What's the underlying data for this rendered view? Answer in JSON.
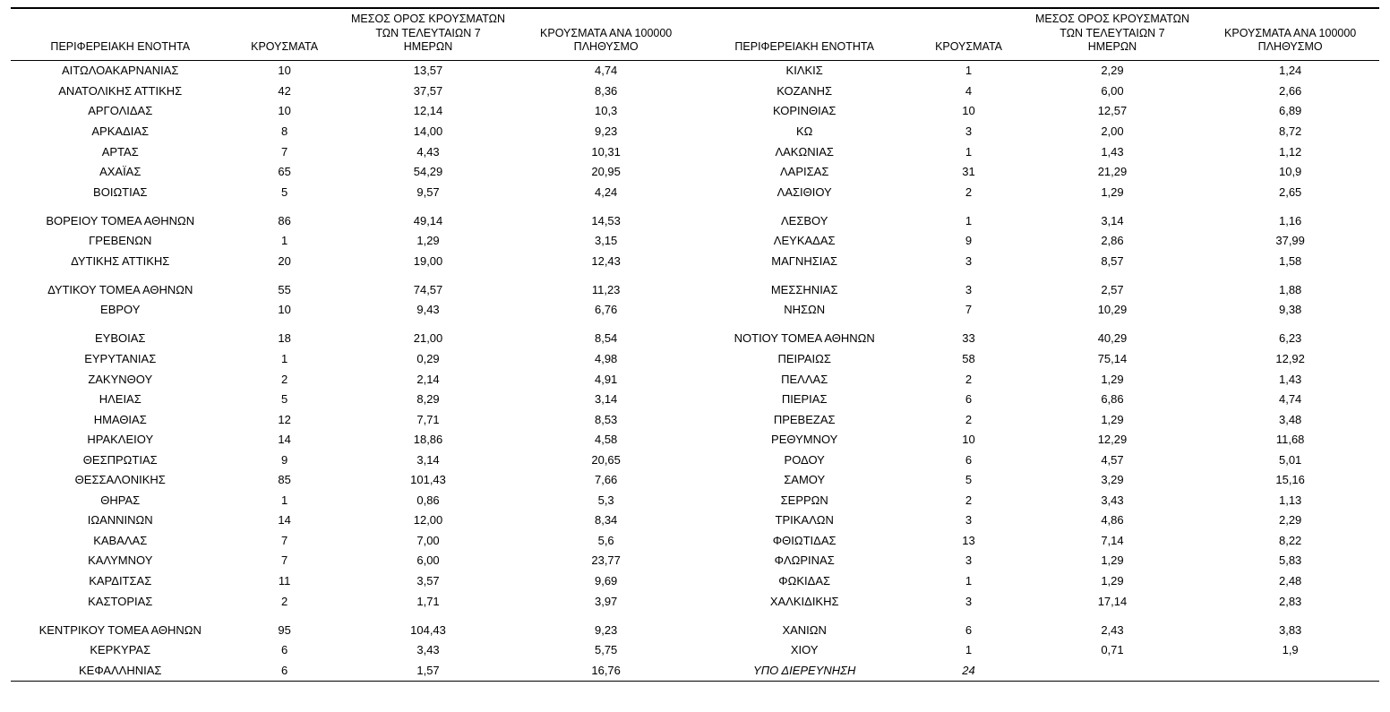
{
  "type": "table",
  "layout": "two-column-repeat",
  "background_color": "#ffffff",
  "text_color": "#000000",
  "border_color": "#000000",
  "font_family": "Arial",
  "header_fontsize": 12.5,
  "body_fontsize": 13,
  "columns": [
    {
      "key": "region",
      "label": "ΠΕΡΙΦΕΡΕΙΑΚΗ ΕΝΟΤΗΤΑ",
      "align": "center",
      "width_pct": 16
    },
    {
      "key": "cases",
      "label": "ΚΡΟΥΣΜΑΤΑ",
      "align": "center",
      "width_pct": 8
    },
    {
      "key": "avg7",
      "label": "ΜΕΣΟΣ ΟΡΟΣ ΚΡΟΥΣΜΑΤΩΝ ΤΩΝ ΤΕΛΕΥΤΑΙΩΝ 7 ΗΜΕΡΩΝ",
      "align": "center",
      "width_pct": 13
    },
    {
      "key": "per100k",
      "label": "ΚΡΟΥΣΜΑΤΑ ΑΝΑ 100000 ΠΛΗΘΥΣΜΟ",
      "align": "center",
      "width_pct": 13
    }
  ],
  "header_lines": {
    "region": "ΠΕΡΙΦΕΡΕΙΑΚΗ ΕΝΟΤΗΤΑ",
    "cases": "ΚΡΟΥΣΜΑΤΑ",
    "avg7_l1": "ΜΕΣΟΣ ΟΡΟΣ ΚΡΟΥΣΜΑΤΩΝ",
    "avg7_l2": "ΤΩΝ ΤΕΛΕΥΤΑΙΩΝ 7",
    "avg7_l3": "ΗΜΕΡΩΝ",
    "per_l1": "ΚΡΟΥΣΜΑΤΑ ΑΝΑ 100000",
    "per_l2": "ΠΛΗΘΥΣΜΟ"
  },
  "rows": [
    {
      "left": {
        "region": "ΑΙΤΩΛΟΑΚΑΡΝΑΝΙΑΣ",
        "cases": "10",
        "avg7": "13,57",
        "per100k": "4,74"
      },
      "right": {
        "region": "ΚΙΛΚΙΣ",
        "cases": "1",
        "avg7": "2,29",
        "per100k": "1,24"
      }
    },
    {
      "left": {
        "region": "ΑΝΑΤΟΛΙΚΗΣ ΑΤΤΙΚΗΣ",
        "cases": "42",
        "avg7": "37,57",
        "per100k": "8,36"
      },
      "right": {
        "region": "ΚΟΖΑΝΗΣ",
        "cases": "4",
        "avg7": "6,00",
        "per100k": "2,66"
      }
    },
    {
      "left": {
        "region": "ΑΡΓΟΛΙΔΑΣ",
        "cases": "10",
        "avg7": "12,14",
        "per100k": "10,3"
      },
      "right": {
        "region": "ΚΟΡΙΝΘΙΑΣ",
        "cases": "10",
        "avg7": "12,57",
        "per100k": "6,89"
      }
    },
    {
      "left": {
        "region": "ΑΡΚΑΔΙΑΣ",
        "cases": "8",
        "avg7": "14,00",
        "per100k": "9,23"
      },
      "right": {
        "region": "ΚΩ",
        "cases": "3",
        "avg7": "2,00",
        "per100k": "8,72"
      }
    },
    {
      "left": {
        "region": "ΑΡΤΑΣ",
        "cases": "7",
        "avg7": "4,43",
        "per100k": "10,31"
      },
      "right": {
        "region": "ΛΑΚΩΝΙΑΣ",
        "cases": "1",
        "avg7": "1,43",
        "per100k": "1,12"
      }
    },
    {
      "left": {
        "region": "ΑΧΑΪΑΣ",
        "cases": "65",
        "avg7": "54,29",
        "per100k": "20,95"
      },
      "right": {
        "region": "ΛΑΡΙΣΑΣ",
        "cases": "31",
        "avg7": "21,29",
        "per100k": "10,9"
      }
    },
    {
      "left": {
        "region": "ΒΟΙΩΤΙΑΣ",
        "cases": "5",
        "avg7": "9,57",
        "per100k": "4,24"
      },
      "right": {
        "region": "ΛΑΣΙΘΙΟΥ",
        "cases": "2",
        "avg7": "1,29",
        "per100k": "2,65"
      }
    },
    {
      "gap": true,
      "left": {
        "region": "ΒΟΡΕΙΟΥ ΤΟΜΕΑ ΑΘΗΝΩΝ",
        "cases": "86",
        "avg7": "49,14",
        "per100k": "14,53"
      },
      "right": {
        "region": "ΛΕΣΒΟΥ",
        "cases": "1",
        "avg7": "3,14",
        "per100k": "1,16"
      }
    },
    {
      "left": {
        "region": "ΓΡΕΒΕΝΩΝ",
        "cases": "1",
        "avg7": "1,29",
        "per100k": "3,15"
      },
      "right": {
        "region": "ΛΕΥΚΑΔΑΣ",
        "cases": "9",
        "avg7": "2,86",
        "per100k": "37,99"
      }
    },
    {
      "left": {
        "region": "ΔΥΤΙΚΗΣ ΑΤΤΙΚΗΣ",
        "cases": "20",
        "avg7": "19,00",
        "per100k": "12,43"
      },
      "right": {
        "region": "ΜΑΓΝΗΣΙΑΣ",
        "cases": "3",
        "avg7": "8,57",
        "per100k": "1,58"
      }
    },
    {
      "gap": true,
      "left": {
        "region": "ΔΥΤΙΚΟΥ ΤΟΜΕΑ ΑΘΗΝΩΝ",
        "cases": "55",
        "avg7": "74,57",
        "per100k": "11,23"
      },
      "right": {
        "region": "ΜΕΣΣΗΝΙΑΣ",
        "cases": "3",
        "avg7": "2,57",
        "per100k": "1,88"
      }
    },
    {
      "left": {
        "region": "ΕΒΡΟΥ",
        "cases": "10",
        "avg7": "9,43",
        "per100k": "6,76"
      },
      "right": {
        "region": "ΝΗΣΩΝ",
        "cases": "7",
        "avg7": "10,29",
        "per100k": "9,38"
      }
    },
    {
      "gap": true,
      "left": {
        "region": "ΕΥΒΟΙΑΣ",
        "cases": "18",
        "avg7": "21,00",
        "per100k": "8,54"
      },
      "right": {
        "region": "ΝΟΤΙΟΥ ΤΟΜΕΑ ΑΘΗΝΩΝ",
        "cases": "33",
        "avg7": "40,29",
        "per100k": "6,23"
      }
    },
    {
      "left": {
        "region": "ΕΥΡΥΤΑΝΙΑΣ",
        "cases": "1",
        "avg7": "0,29",
        "per100k": "4,98"
      },
      "right": {
        "region": "ΠΕΙΡΑΙΩΣ",
        "cases": "58",
        "avg7": "75,14",
        "per100k": "12,92"
      }
    },
    {
      "left": {
        "region": "ΖΑΚΥΝΘΟΥ",
        "cases": "2",
        "avg7": "2,14",
        "per100k": "4,91"
      },
      "right": {
        "region": "ΠΕΛΛΑΣ",
        "cases": "2",
        "avg7": "1,29",
        "per100k": "1,43"
      }
    },
    {
      "left": {
        "region": "ΗΛΕΙΑΣ",
        "cases": "5",
        "avg7": "8,29",
        "per100k": "3,14"
      },
      "right": {
        "region": "ΠΙΕΡΙΑΣ",
        "cases": "6",
        "avg7": "6,86",
        "per100k": "4,74"
      }
    },
    {
      "left": {
        "region": "ΗΜΑΘΙΑΣ",
        "cases": "12",
        "avg7": "7,71",
        "per100k": "8,53"
      },
      "right": {
        "region": "ΠΡΕΒΕΖΑΣ",
        "cases": "2",
        "avg7": "1,29",
        "per100k": "3,48"
      }
    },
    {
      "left": {
        "region": "ΗΡΑΚΛΕΙΟΥ",
        "cases": "14",
        "avg7": "18,86",
        "per100k": "4,58"
      },
      "right": {
        "region": "ΡΕΘΥΜΝΟΥ",
        "cases": "10",
        "avg7": "12,29",
        "per100k": "11,68"
      }
    },
    {
      "left": {
        "region": "ΘΕΣΠΡΩΤΙΑΣ",
        "cases": "9",
        "avg7": "3,14",
        "per100k": "20,65"
      },
      "right": {
        "region": "ΡΟΔΟΥ",
        "cases": "6",
        "avg7": "4,57",
        "per100k": "5,01"
      }
    },
    {
      "left": {
        "region": "ΘΕΣΣΑΛΟΝΙΚΗΣ",
        "cases": "85",
        "avg7": "101,43",
        "per100k": "7,66"
      },
      "right": {
        "region": "ΣΑΜΟΥ",
        "cases": "5",
        "avg7": "3,29",
        "per100k": "15,16"
      }
    },
    {
      "left": {
        "region": "ΘΗΡΑΣ",
        "cases": "1",
        "avg7": "0,86",
        "per100k": "5,3"
      },
      "right": {
        "region": "ΣΕΡΡΩΝ",
        "cases": "2",
        "avg7": "3,43",
        "per100k": "1,13"
      }
    },
    {
      "left": {
        "region": "ΙΩΑΝΝΙΝΩΝ",
        "cases": "14",
        "avg7": "12,00",
        "per100k": "8,34"
      },
      "right": {
        "region": "ΤΡΙΚΑΛΩΝ",
        "cases": "3",
        "avg7": "4,86",
        "per100k": "2,29"
      }
    },
    {
      "left": {
        "region": "ΚΑΒΑΛΑΣ",
        "cases": "7",
        "avg7": "7,00",
        "per100k": "5,6"
      },
      "right": {
        "region": "ΦΘΙΩΤΙΔΑΣ",
        "cases": "13",
        "avg7": "7,14",
        "per100k": "8,22"
      }
    },
    {
      "left": {
        "region": "ΚΑΛΥΜΝΟΥ",
        "cases": "7",
        "avg7": "6,00",
        "per100k": "23,77"
      },
      "right": {
        "region": "ΦΛΩΡΙΝΑΣ",
        "cases": "3",
        "avg7": "1,29",
        "per100k": "5,83"
      }
    },
    {
      "left": {
        "region": "ΚΑΡΔΙΤΣΑΣ",
        "cases": "11",
        "avg7": "3,57",
        "per100k": "9,69"
      },
      "right": {
        "region": "ΦΩΚΙΔΑΣ",
        "cases": "1",
        "avg7": "1,29",
        "per100k": "2,48"
      }
    },
    {
      "left": {
        "region": "ΚΑΣΤΟΡΙΑΣ",
        "cases": "2",
        "avg7": "1,71",
        "per100k": "3,97"
      },
      "right": {
        "region": "ΧΑΛΚΙΔΙΚΗΣ",
        "cases": "3",
        "avg7": "17,14",
        "per100k": "2,83"
      }
    },
    {
      "gap": true,
      "left": {
        "region": "ΚΕΝΤΡΙΚΟΥ ΤΟΜΕΑ ΑΘΗΝΩΝ",
        "cases": "95",
        "avg7": "104,43",
        "per100k": "9,23"
      },
      "right": {
        "region": "ΧΑΝΙΩΝ",
        "cases": "6",
        "avg7": "2,43",
        "per100k": "3,83"
      }
    },
    {
      "left": {
        "region": "ΚΕΡΚΥΡΑΣ",
        "cases": "6",
        "avg7": "3,43",
        "per100k": "5,75"
      },
      "right": {
        "region": "ΧΙΟΥ",
        "cases": "1",
        "avg7": "0,71",
        "per100k": "1,9"
      }
    },
    {
      "last": true,
      "left": {
        "region": "ΚΕΦΑΛΛΗΝΙΑΣ",
        "cases": "6",
        "avg7": "1,57",
        "per100k": "16,76"
      },
      "right": {
        "region": "ΥΠΟ ΔΙΕΡΕΥΝΗΣΗ",
        "cases": "24",
        "avg7": "",
        "per100k": "",
        "italic": true
      }
    }
  ]
}
